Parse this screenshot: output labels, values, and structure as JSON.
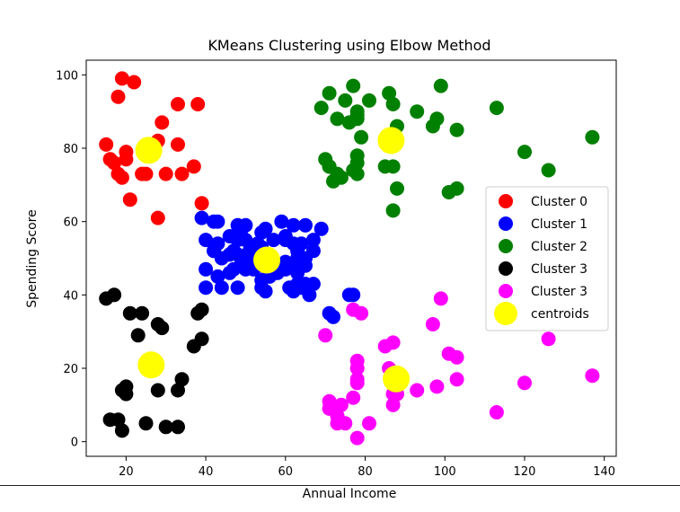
{
  "chart_data": {
    "type": "scatter",
    "title": "KMeans Clustering using Elbow Method",
    "xlabel": "Annual Income",
    "ylabel": "Spending Score",
    "xlim": [
      10,
      143
    ],
    "ylim": [
      -4,
      104
    ],
    "xticks": [
      20,
      40,
      60,
      80,
      100,
      120,
      140
    ],
    "yticks": [
      0,
      20,
      40,
      60,
      80,
      100
    ],
    "grid": false,
    "legend_position": "center-right",
    "series": [
      {
        "name": "Cluster 0",
        "color": "#ff0000",
        "points": [
          [
            19,
            99
          ],
          [
            18,
            94
          ],
          [
            22,
            98
          ],
          [
            29,
            87
          ],
          [
            33,
            92
          ],
          [
            38,
            92
          ],
          [
            15,
            81
          ],
          [
            16,
            77
          ],
          [
            17,
            76
          ],
          [
            18,
            73
          ],
          [
            19,
            72
          ],
          [
            20,
            77
          ],
          [
            20,
            79
          ],
          [
            21,
            66
          ],
          [
            24,
            73
          ],
          [
            25,
            73
          ],
          [
            28,
            82
          ],
          [
            28,
            61
          ],
          [
            30,
            73
          ],
          [
            33,
            81
          ],
          [
            34,
            73
          ],
          [
            37,
            75
          ],
          [
            39,
            65
          ]
        ]
      },
      {
        "name": "Cluster 1",
        "color": "#0000ff",
        "points": [
          [
            39,
            61
          ],
          [
            40,
            55
          ],
          [
            40,
            47
          ],
          [
            40,
            42
          ],
          [
            42,
            52
          ],
          [
            42,
            60
          ],
          [
            43,
            60
          ],
          [
            43,
            54
          ],
          [
            43,
            45
          ],
          [
            44,
            50
          ],
          [
            44,
            42
          ],
          [
            46,
            51
          ],
          [
            46,
            46
          ],
          [
            46,
            56
          ],
          [
            47,
            52
          ],
          [
            47,
            47
          ],
          [
            48,
            59
          ],
          [
            48,
            51
          ],
          [
            48,
            55
          ],
          [
            48,
            42
          ],
          [
            49,
            49
          ],
          [
            49,
            56
          ],
          [
            50,
            59
          ],
          [
            50,
            47
          ],
          [
            50,
            55
          ],
          [
            51,
            52
          ],
          [
            51,
            49
          ],
          [
            52,
            47
          ],
          [
            53,
            54
          ],
          [
            54,
            53
          ],
          [
            54,
            48
          ],
          [
            54,
            52
          ],
          [
            54,
            42
          ],
          [
            54,
            44
          ],
          [
            54,
            57
          ],
          [
            55,
            58
          ],
          [
            55,
            41
          ],
          [
            56,
            46
          ],
          [
            57,
            55
          ],
          [
            57,
            49
          ],
          [
            58,
            46
          ],
          [
            59,
            60
          ],
          [
            60,
            55
          ],
          [
            60,
            49
          ],
          [
            60,
            56
          ],
          [
            60,
            47
          ],
          [
            61,
            42
          ],
          [
            62,
            48
          ],
          [
            62,
            54
          ],
          [
            62,
            59
          ],
          [
            62,
            41
          ],
          [
            63,
            50
          ],
          [
            63,
            46
          ],
          [
            63,
            43
          ],
          [
            63,
            48
          ],
          [
            63,
            52
          ],
          [
            64,
            54
          ],
          [
            64,
            42
          ],
          [
            65,
            48
          ],
          [
            65,
            50
          ],
          [
            65,
            43
          ],
          [
            65,
            59
          ],
          [
            66,
            40
          ],
          [
            67,
            55
          ],
          [
            67,
            43
          ],
          [
            67,
            52
          ],
          [
            69,
            58
          ],
          [
            71,
            35
          ],
          [
            72,
            34
          ],
          [
            76,
            40
          ],
          [
            77,
            40
          ],
          [
            56,
            45
          ]
        ]
      },
      {
        "name": "Cluster 2",
        "color": "#008000",
        "points": [
          [
            69,
            91
          ],
          [
            70,
            77
          ],
          [
            71,
            95
          ],
          [
            71,
            75
          ],
          [
            71,
            75
          ],
          [
            72,
            71
          ],
          [
            73,
            88
          ],
          [
            73,
            73
          ],
          [
            74,
            72
          ],
          [
            75,
            93
          ],
          [
            76,
            87
          ],
          [
            77,
            97
          ],
          [
            77,
            74
          ],
          [
            78,
            90
          ],
          [
            78,
            88
          ],
          [
            78,
            76
          ],
          [
            78,
            89
          ],
          [
            78,
            78
          ],
          [
            78,
            73
          ],
          [
            79,
            83
          ],
          [
            81,
            93
          ],
          [
            85,
            75
          ],
          [
            86,
            95
          ],
          [
            87,
            63
          ],
          [
            87,
            75
          ],
          [
            87,
            92
          ],
          [
            88,
            86
          ],
          [
            88,
            69
          ],
          [
            93,
            90
          ],
          [
            97,
            86
          ],
          [
            98,
            88
          ],
          [
            99,
            97
          ],
          [
            101,
            68
          ],
          [
            103,
            85
          ],
          [
            103,
            69
          ],
          [
            113,
            91
          ],
          [
            120,
            79
          ],
          [
            126,
            74
          ],
          [
            137,
            83
          ]
        ]
      },
      {
        "name": "Cluster 3",
        "color": "#000000",
        "points": [
          [
            15,
            39
          ],
          [
            16,
            6
          ],
          [
            17,
            40
          ],
          [
            18,
            6
          ],
          [
            19,
            3
          ],
          [
            19,
            14
          ],
          [
            20,
            15
          ],
          [
            20,
            13
          ],
          [
            21,
            35
          ],
          [
            23,
            29
          ],
          [
            24,
            35
          ],
          [
            25,
            5
          ],
          [
            28,
            14
          ],
          [
            28,
            32
          ],
          [
            29,
            31
          ],
          [
            30,
            4
          ],
          [
            33,
            4
          ],
          [
            33,
            14
          ],
          [
            34,
            17
          ],
          [
            37,
            26
          ],
          [
            38,
            35
          ],
          [
            39,
            36
          ],
          [
            39,
            28
          ]
        ]
      },
      {
        "name": "Cluster 3",
        "color": "#ff00ff",
        "points": [
          [
            70,
            29
          ],
          [
            71,
            11
          ],
          [
            71,
            9
          ],
          [
            73,
            5
          ],
          [
            73,
            7
          ],
          [
            74,
            10
          ],
          [
            75,
            5
          ],
          [
            77,
            12
          ],
          [
            77,
            36
          ],
          [
            78,
            22
          ],
          [
            78,
            17
          ],
          [
            78,
            20
          ],
          [
            78,
            16
          ],
          [
            78,
            1
          ],
          [
            79,
            35
          ],
          [
            81,
            5
          ],
          [
            85,
            26
          ],
          [
            86,
            20
          ],
          [
            87,
            27
          ],
          [
            87,
            13
          ],
          [
            87,
            10
          ],
          [
            88,
            13
          ],
          [
            88,
            15
          ],
          [
            93,
            14
          ],
          [
            97,
            32
          ],
          [
            98,
            15
          ],
          [
            99,
            39
          ],
          [
            101,
            24
          ],
          [
            103,
            17
          ],
          [
            103,
            23
          ],
          [
            113,
            8
          ],
          [
            120,
            16
          ],
          [
            126,
            28
          ],
          [
            137,
            18
          ]
        ]
      },
      {
        "name": "centroids",
        "color": "#ffff00",
        "points": [
          [
            25.7,
            79.4
          ],
          [
            55.3,
            49.5
          ],
          [
            86.5,
            82.1
          ],
          [
            26.3,
            20.9
          ],
          [
            87.8,
            17.1
          ]
        ]
      }
    ]
  }
}
